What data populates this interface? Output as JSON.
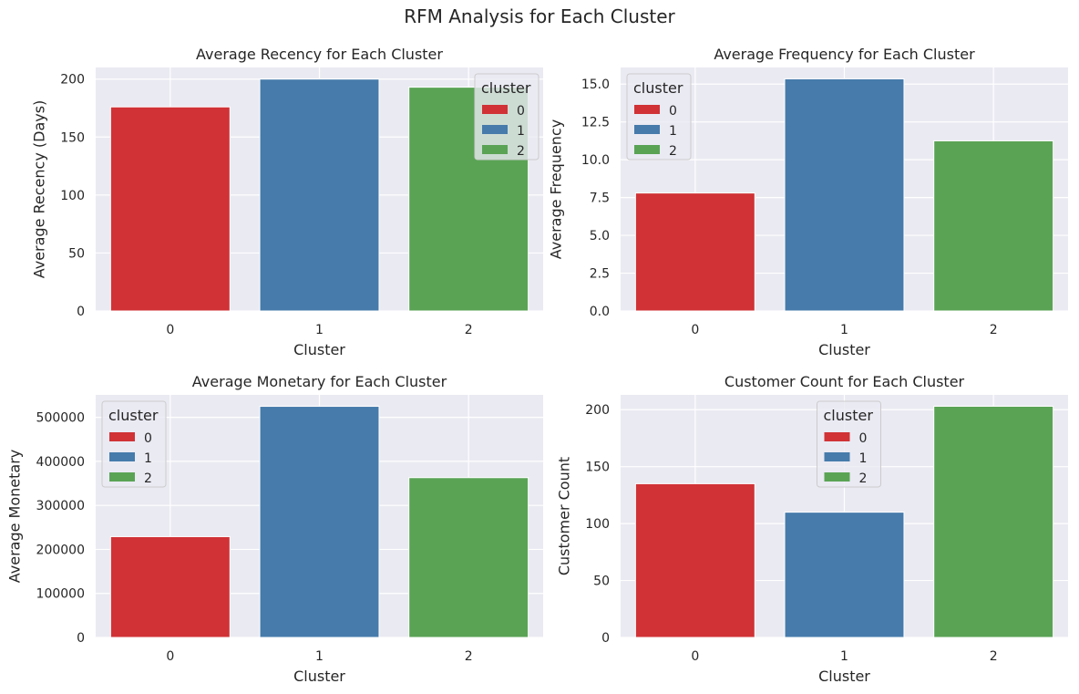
{
  "figure": {
    "title": "RFM Analysis for Each Cluster"
  },
  "colors": {
    "cluster_0": "#d03236",
    "cluster_1": "#467bab",
    "cluster_2": "#5aa355",
    "axes_bg": "#eaeaf2",
    "grid": "#ffffff"
  },
  "chart_data": [
    {
      "type": "bar",
      "title": "Average Recency for Each Cluster",
      "xlabel": "Cluster",
      "ylabel": "Average Recency (Days)",
      "categories": [
        "0",
        "1",
        "2"
      ],
      "values": [
        176,
        200,
        193
      ],
      "ylim": [
        0,
        210
      ],
      "yticks": [
        0,
        50,
        100,
        150,
        200
      ],
      "ytick_labels": [
        "0",
        "50",
        "100",
        "150",
        "200"
      ],
      "grid": true,
      "legend": {
        "title": "cluster",
        "entries": [
          "0",
          "1",
          "2"
        ],
        "placement": "top-right"
      }
    },
    {
      "type": "bar",
      "title": "Average Frequency for Each Cluster",
      "xlabel": "Cluster",
      "ylabel": "Average Frequency",
      "categories": [
        "0",
        "1",
        "2"
      ],
      "values": [
        7.8,
        15.35,
        11.25
      ],
      "ylim": [
        0,
        16.1
      ],
      "yticks": [
        0,
        2.5,
        5,
        7.5,
        10,
        12.5,
        15
      ],
      "ytick_labels": [
        "0.0",
        "2.5",
        "5.0",
        "7.5",
        "10.0",
        "12.5",
        "15.0"
      ],
      "grid": true,
      "legend": {
        "title": "cluster",
        "entries": [
          "0",
          "1",
          "2"
        ],
        "placement": "top-left"
      }
    },
    {
      "type": "bar",
      "title": "Average Monetary for Each Cluster",
      "xlabel": "Cluster",
      "ylabel": "Average Monetary",
      "categories": [
        "0",
        "1",
        "2"
      ],
      "values": [
        229000,
        525000,
        363000
      ],
      "ylim": [
        0,
        551000
      ],
      "yticks": [
        0,
        100000,
        200000,
        300000,
        400000,
        500000
      ],
      "ytick_labels": [
        "0",
        "100000",
        "200000",
        "300000",
        "400000",
        "500000"
      ],
      "grid": true,
      "legend": {
        "title": "cluster",
        "entries": [
          "0",
          "1",
          "2"
        ],
        "placement": "top-left"
      }
    },
    {
      "type": "bar",
      "title": "Customer Count for Each Cluster",
      "xlabel": "Cluster",
      "ylabel": "Customer Count",
      "categories": [
        "0",
        "1",
        "2"
      ],
      "values": [
        135,
        110,
        203
      ],
      "ylim": [
        0,
        213
      ],
      "yticks": [
        0,
        50,
        100,
        150,
        200
      ],
      "ytick_labels": [
        "0",
        "50",
        "100",
        "150",
        "200"
      ],
      "grid": true,
      "legend": {
        "title": "cluster",
        "entries": [
          "0",
          "1",
          "2"
        ],
        "placement": "top-center"
      }
    }
  ]
}
